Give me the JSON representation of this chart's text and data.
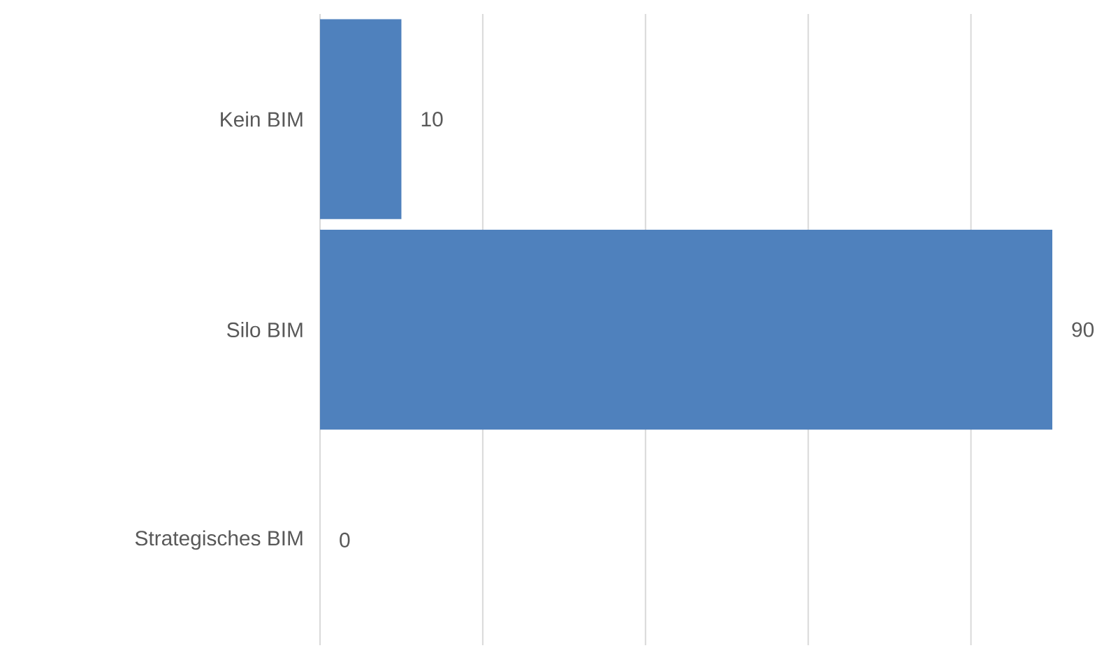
{
  "chart_data": {
    "type": "bar",
    "orientation": "horizontal",
    "categories": [
      "Kein BIM",
      "Silo BIM",
      "Strategisches BIM"
    ],
    "values": [
      10,
      90,
      0
    ],
    "color": "#4f81bd",
    "data_labels": true,
    "xticks": [
      {
        "value": 0,
        "label": null
      },
      {
        "value": 20,
        "label": null
      },
      {
        "value": 40,
        "label": null
      },
      {
        "value": 60,
        "label": null
      },
      {
        "value": 80,
        "label": null
      }
    ],
    "grid": "x",
    "tick_labels": "y"
  }
}
